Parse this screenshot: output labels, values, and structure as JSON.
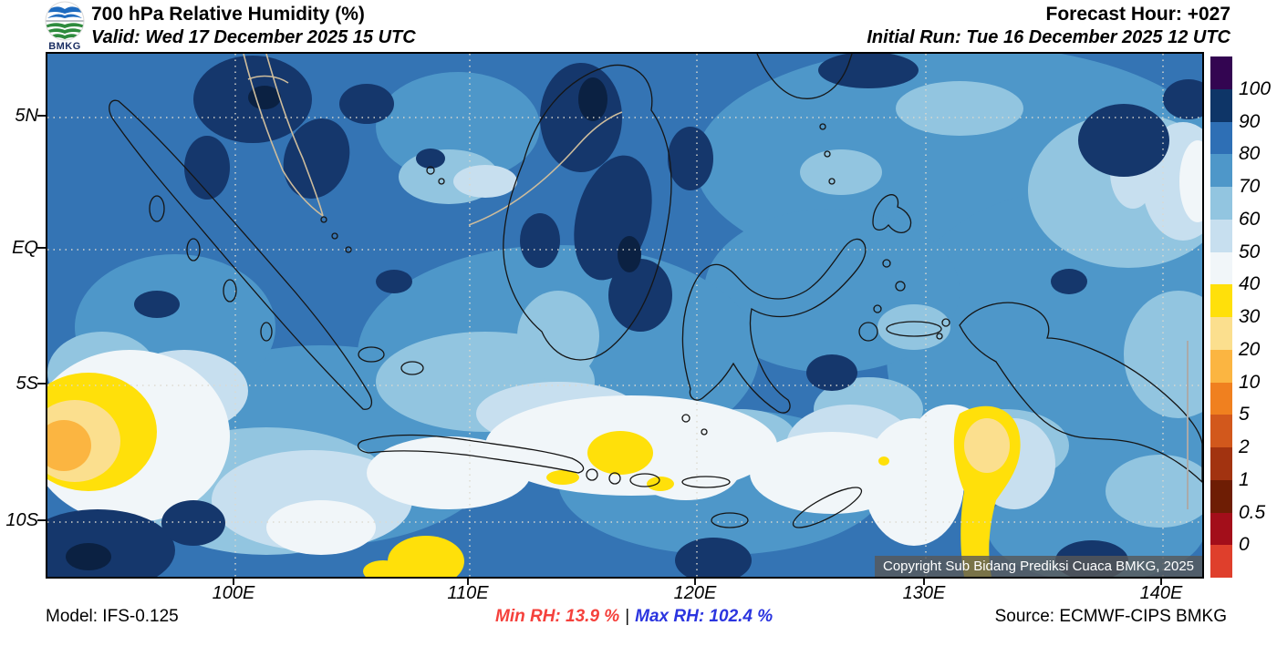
{
  "header": {
    "logo_text": "BMKG",
    "title": "700 hPa Relative Humidity (%)",
    "valid": "Valid: Wed 17 December 2025 15 UTC",
    "forecast_hour": "Forecast Hour: +027",
    "initial_run": "Initial Run: Tue 16 December 2025 12 UTC"
  },
  "map": {
    "lat_labels": [
      "5N",
      "EQ",
      "5S",
      "10S"
    ],
    "lon_labels": [
      "100E",
      "110E",
      "120E",
      "130E",
      "140E"
    ],
    "copyright": "Copyright Sub Bidang Prediksi Cuaca BMKG, 2025"
  },
  "colorbar": {
    "tick_labels": [
      "100",
      "90",
      "80",
      "70",
      "60",
      "50",
      "40",
      "30",
      "20",
      "10",
      "5",
      "2",
      "1",
      "0.5",
      "0"
    ],
    "segment_colors": [
      "#330551",
      "#0E3567",
      "#2E6FB5",
      "#4E97C9",
      "#92C5E0",
      "#C7DFEF",
      "#F1F6F9",
      "#FFE00A",
      "#FBDF8E",
      "#FBB541",
      "#F0801F",
      "#D2581C",
      "#A23310",
      "#6E1D04",
      "#A30E1A",
      "#DF3F2C"
    ]
  },
  "footer": {
    "model": "Model: IFS-0.125",
    "min_rh_label": "Min RH:  13.9 %",
    "separator": "|",
    "max_rh_label": "Max RH: 102.4 %",
    "source": "Source: ECMWF-CIPS BMKG",
    "min_rh_color": "#F5413C",
    "max_rh_color": "#2B35DF"
  }
}
